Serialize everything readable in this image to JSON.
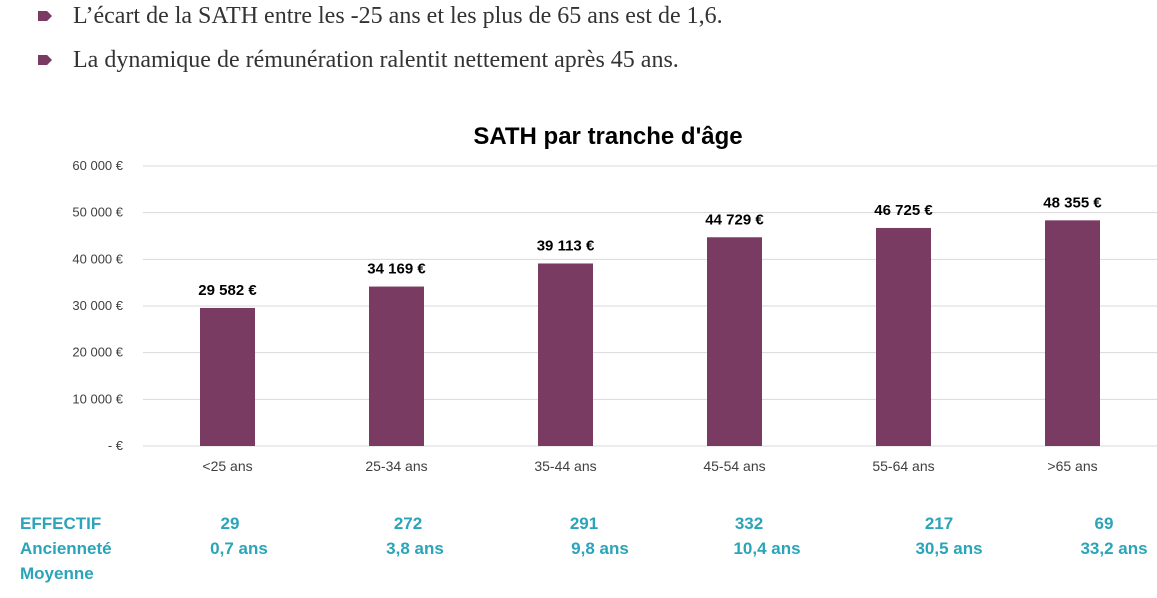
{
  "bullets": [
    "L’écart de la SATH entre les -25 ans et les plus de 65 ans est de 1,6.",
    "La dynamique de rémunération ralentit nettement après 45 ans."
  ],
  "colors": {
    "bar": "#7a3b62",
    "bullet": "#7a3b62",
    "table_text": "#2aa4b8",
    "text": "#333333",
    "grid": "#d9d9d9"
  },
  "chart_data": {
    "type": "bar",
    "title": "SATH par tranche d'âge",
    "categories": [
      "<25 ans",
      "25-34 ans",
      "35-44 ans",
      "45-54 ans",
      "55-64 ans",
      ">65 ans"
    ],
    "values": [
      29582,
      34169,
      39113,
      44729,
      46725,
      48355
    ],
    "data_labels": [
      "29 582 €",
      "34 169 €",
      "39 113 €",
      "44 729 €",
      "46 725 €",
      "48 355 €"
    ],
    "ylim": [
      0,
      60000
    ],
    "yticks": [
      0,
      10000,
      20000,
      30000,
      40000,
      50000,
      60000
    ],
    "ytick_labels": [
      "-  €",
      "10 000 €",
      "20 000 €",
      "30 000 €",
      "40 000 €",
      "50 000 €",
      "60 000 €"
    ],
    "grid": true,
    "legend": "none"
  },
  "table": {
    "effectif_label": "EFFECTIF",
    "effectif": [
      "29",
      "272",
      "291",
      "332",
      "217",
      "69"
    ],
    "anciennete_label_1": "Ancienneté",
    "anciennete_label_2": "Moyenne",
    "anciennete": [
      "0,7 ans",
      "3,8 ans",
      "9,8 ans",
      "10,4 ans",
      "30,5 ans",
      "33,2 ans"
    ]
  }
}
